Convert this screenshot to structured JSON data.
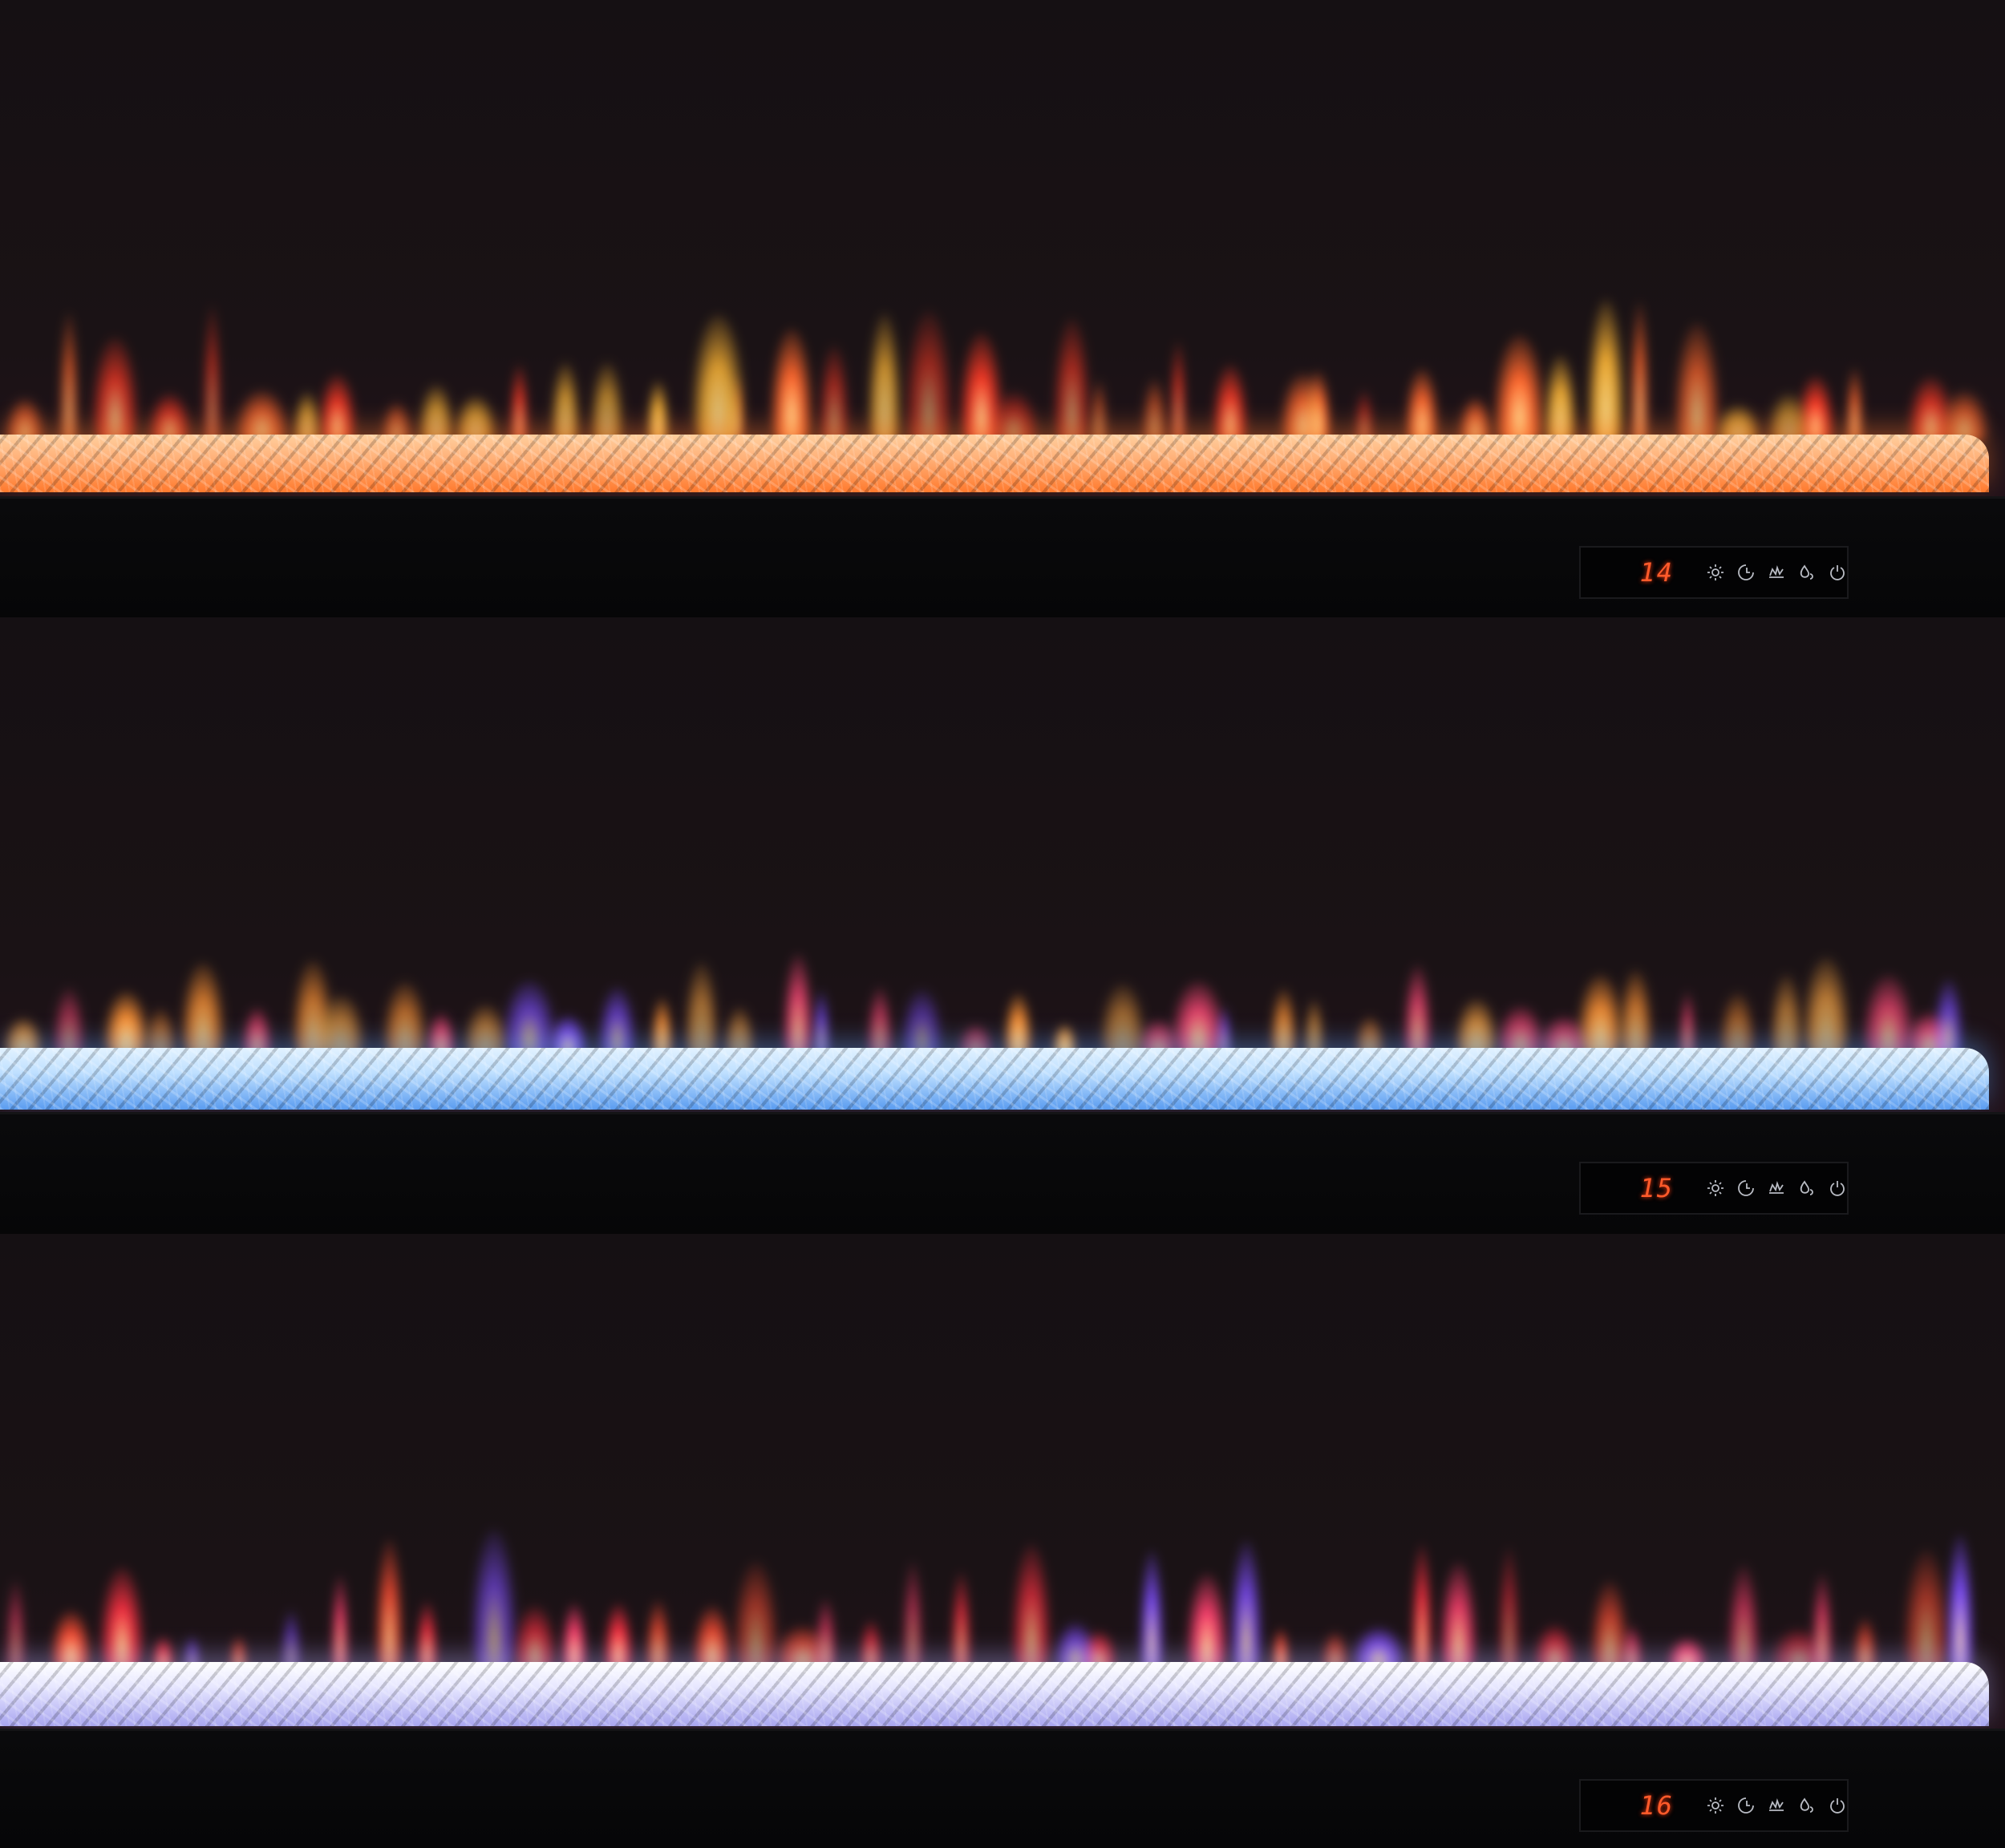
{
  "panels": [
    {
      "display": "14",
      "crystal_colors": [
        "#ffb27a",
        "#ff7a2e",
        "#ffcf9e"
      ],
      "flame_colors": [
        "#ff2a10",
        "#ff5a18",
        "#ffb020"
      ],
      "background": "#150d10"
    },
    {
      "display": "15",
      "crystal_colors": [
        "#bfe0ff",
        "#5a9cf0",
        "#e2f2ff"
      ],
      "flame_colors": [
        "#ff8a20",
        "#ff3a6a",
        "#6a40ff",
        "#ffa030"
      ],
      "background": "#17121a"
    },
    {
      "display": "16",
      "crystal_colors": [
        "#e6e6ff",
        "#a9a6f0",
        "#ffffff"
      ],
      "flame_colors": [
        "#ff2030",
        "#ff3060",
        "#7040ff",
        "#ff4020"
      ],
      "background": "#150c12"
    }
  ],
  "control_icons": [
    "brightness-icon",
    "timer-icon",
    "flame-effect-icon",
    "heat-icon",
    "power-icon"
  ],
  "display_color": "#ff5a2a"
}
